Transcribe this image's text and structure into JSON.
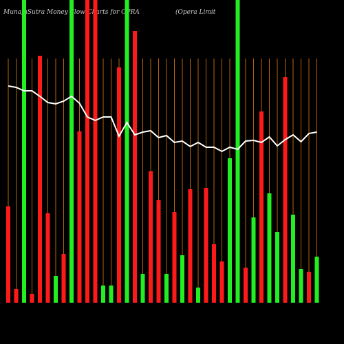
{
  "chart_data": {
    "type": "bar",
    "title": "MunafaSutra  Money Flow  Charts for OPRA",
    "subtitle": "(Opera  Limit",
    "ylim": [
      0,
      440
    ],
    "series": [
      {
        "name": "Money flow",
        "colors": [
          "#ff1a1a",
          "#ff1a1a",
          "#22ee22",
          "#ff1a1a",
          "#ff1a1a",
          "#ff1a1a",
          "#22ee22",
          "#ff1a1a",
          "#22ee22",
          "#ff1a1a",
          "#ff1a1a",
          "#ff1a1a",
          "#22ee22",
          "#22ee22",
          "#ff1a1a",
          "#22ee22",
          "#ff1a1a",
          "#22ee22",
          "#ff1a1a",
          "#ff1a1a",
          "#22ee22",
          "#ff1a1a",
          "#22ee22",
          "#ff1a1a",
          "#22ee22",
          "#ff1a1a",
          "#ff1a1a",
          "#ff1a1a",
          "#22ee22",
          "#22ee22",
          "#ff1a1a",
          "#22ee22",
          "#ff1a1a",
          "#22ee22",
          "#22ee22",
          "#ff1a1a",
          "#22ee22",
          "#22ee22",
          "#ff1a1a",
          "#22ee22"
        ],
        "values": [
          140,
          20,
          440,
          13,
          359,
          130,
          39,
          71,
          440,
          249,
          440,
          440,
          25,
          25,
          342,
          440,
          395,
          42,
          191,
          149,
          42,
          132,
          69,
          165,
          22,
          167,
          85,
          60,
          210,
          440,
          51,
          124,
          278,
          159,
          103,
          328,
          128,
          49,
          45,
          67
        ]
      },
      {
        "name": "Trend",
        "color": "#ffffff",
        "values": [
          315,
          313,
          308,
          308,
          300,
          291,
          289,
          293,
          300,
          290,
          270,
          265,
          270,
          270,
          242,
          262,
          244,
          248,
          250,
          240,
          243,
          233,
          235,
          227,
          233,
          226,
          226,
          220,
          226,
          223,
          235,
          236,
          233,
          241,
          228,
          237,
          244,
          234,
          246,
          248
        ]
      }
    ],
    "gridline_color": "#b8640a"
  }
}
